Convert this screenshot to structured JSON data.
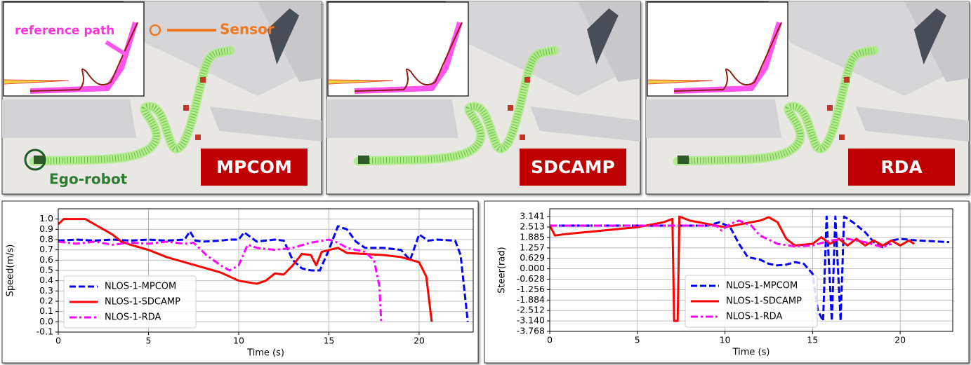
{
  "panels": [
    {
      "label": "MPCOM",
      "annotations": [
        "reference path",
        "Sensor",
        "Ego-robot"
      ]
    },
    {
      "label": "SDCAMP"
    },
    {
      "label": "RDA"
    }
  ],
  "chart_data": [
    {
      "type": "line",
      "ylabel": "Speed(m/s)",
      "xlabel": "Time (s)",
      "xlim": [
        0,
        23
      ],
      "xticks": [
        0,
        5,
        10,
        15,
        20
      ],
      "ylim": [
        -0.1,
        1.1
      ],
      "yticks": [
        -0.1,
        {
          "value": 0,
          "label": "0.0"
        },
        0.1,
        0.2,
        0.3,
        0.4,
        0.5,
        0.6,
        0.7,
        0.8,
        0.9,
        {
          "value": 1,
          "label": "1.0"
        }
      ],
      "grid": true,
      "legend": "lower left",
      "series": [
        {
          "name": "NLOS-1-MPCOM",
          "color": "#0000ff",
          "style": "dashed",
          "x": [
            0,
            1,
            2,
            3,
            4,
            5,
            6,
            7,
            7.3,
            7.6,
            8,
            9,
            9.5,
            10,
            10.3,
            10.7,
            11,
            12,
            12.5,
            13,
            13.5,
            14,
            14.5,
            15,
            15.5,
            16,
            16.5,
            17,
            18,
            19,
            19.5,
            20,
            20.5,
            21,
            22,
            22.3,
            22.7
          ],
          "values": [
            0.79,
            0.8,
            0.79,
            0.8,
            0.79,
            0.8,
            0.79,
            0.8,
            0.88,
            0.79,
            0.78,
            0.79,
            0.8,
            0.8,
            0.87,
            0.82,
            0.78,
            0.8,
            0.79,
            0.6,
            0.52,
            0.5,
            0.5,
            0.7,
            0.93,
            0.9,
            0.78,
            0.72,
            0.72,
            0.7,
            0.6,
            0.85,
            0.79,
            0.8,
            0.79,
            0.65,
            0.0
          ]
        },
        {
          "name": "NLOS-1-SDCAMP",
          "color": "#ff0000",
          "style": "solid",
          "x": [
            0,
            0.3,
            1.5,
            2,
            2.5,
            3,
            3.5,
            4,
            5,
            6,
            7,
            8,
            9,
            10,
            11,
            11.5,
            12,
            12.5,
            13,
            13.5,
            14,
            14.3,
            14.6,
            15.5,
            16,
            17,
            18,
            19,
            20,
            20.4,
            20.7
          ],
          "values": [
            0.95,
            1.0,
            1.0,
            0.95,
            0.9,
            0.85,
            0.78,
            0.75,
            0.7,
            0.63,
            0.58,
            0.53,
            0.48,
            0.4,
            0.37,
            0.4,
            0.47,
            0.46,
            0.55,
            0.66,
            0.65,
            0.55,
            0.68,
            0.72,
            0.67,
            0.66,
            0.65,
            0.63,
            0.58,
            0.44,
            0.0
          ]
        },
        {
          "name": "NLOS-1-RDA",
          "color": "#ff00ff",
          "style": "dashdot",
          "x": [
            0,
            1,
            2,
            3,
            4,
            5,
            6,
            7,
            7.5,
            7.8,
            8.2,
            9,
            9.5,
            10,
            10.5,
            11,
            12,
            13,
            14,
            15,
            15.5,
            16,
            17,
            17.5,
            17.8,
            17.9
          ],
          "values": [
            0.78,
            0.76,
            0.78,
            0.75,
            0.77,
            0.76,
            0.78,
            0.76,
            0.77,
            0.72,
            0.65,
            0.55,
            0.5,
            0.55,
            0.75,
            0.72,
            0.7,
            0.72,
            0.77,
            0.8,
            0.77,
            0.72,
            0.68,
            0.6,
            0.35,
            0.0
          ]
        }
      ]
    },
    {
      "type": "line",
      "ylabel": "Steer(rad)",
      "xlabel": "Time (s)",
      "xlim": [
        0,
        23
      ],
      "xticks": [
        0,
        5,
        10,
        15,
        20
      ],
      "ylim": [
        -3.768,
        3.61
      ],
      "yticks": [
        -3.768,
        {
          "value": -3.14,
          "label": "-3.140"
        },
        -2.512,
        -1.884,
        -1.256,
        -0.628,
        {
          "value": 0,
          "label": "0.000"
        },
        0.629,
        1.257,
        1.885,
        2.513,
        3.141
      ],
      "grid": true,
      "legend": "lower center",
      "series": [
        {
          "name": "NLOS-1-MPCOM",
          "color": "#0000ff",
          "style": "dashed",
          "x": [
            0,
            3,
            6,
            9,
            9.7,
            10.3,
            10.8,
            11.3,
            12,
            12.5,
            13,
            13.5,
            14,
            14.5,
            15,
            15.3,
            15.6,
            15.8,
            16.1,
            16.3,
            16.6,
            16.8,
            17.3,
            18,
            18.5,
            19,
            19.5,
            20,
            21,
            22,
            22.8
          ],
          "values": [
            2.6,
            2.6,
            2.6,
            2.6,
            2.8,
            2.5,
            1.5,
            0.7,
            0.55,
            0.3,
            0.2,
            0.25,
            0.4,
            0.3,
            -0.3,
            -2.5,
            -3.14,
            3.14,
            -3.14,
            3.14,
            -3.14,
            3.14,
            2.8,
            2.2,
            1.6,
            1.3,
            1.7,
            1.8,
            1.7,
            1.65,
            1.6
          ]
        },
        {
          "name": "NLOS-1-SDCAMP",
          "color": "#ff0000",
          "style": "solid",
          "x": [
            0,
            0.3,
            1,
            3,
            5,
            6.5,
            7,
            7.1,
            7.3,
            7.4,
            8,
            9,
            10,
            11,
            12,
            12.5,
            13,
            13.5,
            14,
            15,
            15.5,
            16,
            16.5,
            17,
            17.5,
            18,
            18.5,
            19,
            19.5,
            20,
            20.5,
            20.8
          ],
          "values": [
            2.6,
            2.0,
            2.1,
            2.3,
            2.5,
            2.8,
            3.0,
            -3.14,
            -3.14,
            3.14,
            2.9,
            2.7,
            2.5,
            2.7,
            2.9,
            3.1,
            2.8,
            1.8,
            1.4,
            1.5,
            1.9,
            1.5,
            1.8,
            1.4,
            1.8,
            1.4,
            1.7,
            1.4,
            1.7,
            1.4,
            1.7,
            1.5
          ]
        },
        {
          "name": "NLOS-1-RDA",
          "color": "#ff00ff",
          "style": "dashdot",
          "x": [
            0,
            3,
            6,
            9,
            9.5,
            9.8,
            10.3,
            10.8,
            11.5,
            12,
            13,
            14,
            15,
            16,
            17,
            18,
            19,
            19.5
          ],
          "values": [
            2.6,
            2.6,
            2.6,
            2.6,
            2.6,
            2.3,
            2.7,
            2.9,
            2.6,
            2.0,
            1.5,
            1.35,
            1.4,
            1.7,
            1.8,
            1.6,
            1.3,
            1.5
          ]
        }
      ]
    }
  ]
}
